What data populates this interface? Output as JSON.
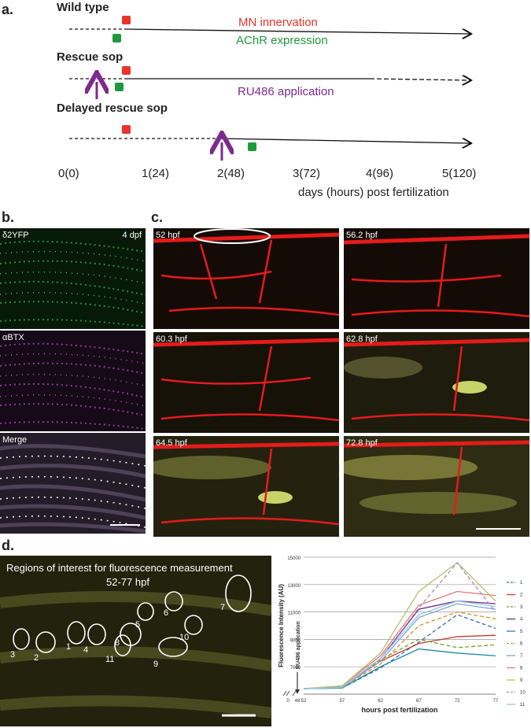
{
  "panel_a": {
    "label": "a.",
    "rows": [
      "Wild type",
      "Rescue sop",
      "Delayed rescue sop"
    ],
    "legend": {
      "mn": "MN innervation",
      "achr": "AChR expression",
      "ru486": "RU486 application"
    },
    "ticks": [
      "0(0)",
      "1(24)",
      "2(48)",
      "3(72)",
      "4(96)",
      "5(120)"
    ],
    "axis_label": "days (hours) post fertilization",
    "colors": {
      "mn": "#e8342a",
      "achr": "#1e9a3c",
      "ru486": "#7d2a8e"
    }
  },
  "panel_b": {
    "label": "b.",
    "top_label": "δ2YFP",
    "top_right": "4 dpf",
    "mid_label": "αBTX",
    "bottom_label": "Merge"
  },
  "panel_c": {
    "label": "c.",
    "timepoints": [
      "52 hpf",
      "56.2 hpf",
      "60.3 hpf",
      "62.8 hpf",
      "64.5 hpf",
      "72.8 hpf"
    ]
  },
  "panel_d": {
    "label": "d.",
    "caption_line1": "Regions of interest for fluorescence measurement",
    "caption_line2": "52-77 hpf",
    "rois": [
      "1",
      "2",
      "3",
      "4",
      "5",
      "6",
      "7",
      "8",
      "9",
      "10",
      "11"
    ]
  },
  "chart_data": {
    "type": "line",
    "ylabel": "Fluorescence Intensity (AU)",
    "xlabel": "hours post fertilization",
    "annotation": "RU486 application",
    "x_ticks": [
      "0",
      "48",
      "52",
      "57",
      "62",
      "67",
      "72",
      "77"
    ],
    "y_ticks": [
      "7000",
      "9000",
      "11000",
      "13000",
      "15000"
    ],
    "ylim": [
      5000,
      15000
    ],
    "x": [
      52,
      57,
      62,
      67,
      72,
      77
    ],
    "series": [
      {
        "name": "1",
        "color": "#3e6fb0",
        "dashed": true,
        "values": [
          5400,
          5450,
          6900,
          8800,
          10800,
          9800
        ]
      },
      {
        "name": "2",
        "color": "#c0392b",
        "dashed": false,
        "values": [
          5400,
          5500,
          7400,
          8700,
          9200,
          9300
        ]
      },
      {
        "name": "3",
        "color": "#7a9a2a",
        "dashed": true,
        "values": [
          5400,
          5500,
          7500,
          9000,
          8400,
          8600
        ]
      },
      {
        "name": "4",
        "color": "#6a2a8a",
        "dashed": false,
        "values": [
          5400,
          5500,
          7600,
          11200,
          11800,
          11600
        ]
      },
      {
        "name": "5",
        "color": "#1a8aa0",
        "dashed": false,
        "values": [
          5400,
          5450,
          7000,
          8300,
          8000,
          7800
        ]
      },
      {
        "name": "6",
        "color": "#e08a1a",
        "dashed": true,
        "values": [
          5400,
          5500,
          7200,
          10000,
          11000,
          10500
        ]
      },
      {
        "name": "7",
        "color": "#7aa6d8",
        "dashed": false,
        "values": [
          5400,
          5500,
          7400,
          10600,
          11600,
          11200
        ]
      },
      {
        "name": "8",
        "color": "#e07a70",
        "dashed": false,
        "values": [
          5400,
          5600,
          7800,
          11500,
          12500,
          12200
        ]
      },
      {
        "name": "9",
        "color": "#b6bf6a",
        "dashed": false,
        "values": [
          5400,
          5600,
          8000,
          12500,
          14600,
          11800
        ]
      },
      {
        "name": "10",
        "color": "#a78ac0",
        "dashed": true,
        "values": [
          5400,
          5500,
          7600,
          11300,
          14600,
          11000
        ]
      },
      {
        "name": "11",
        "color": "#9cc4e4",
        "dashed": false,
        "values": [
          5400,
          5500,
          7600,
          10800,
          11800,
          11400
        ]
      }
    ]
  }
}
